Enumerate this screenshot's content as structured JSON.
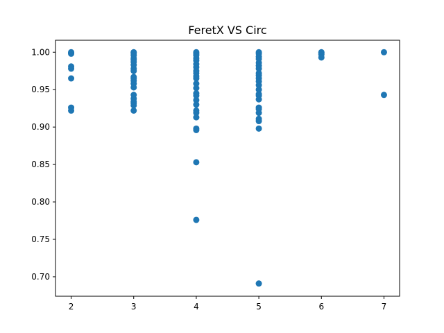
{
  "chart_data": {
    "type": "scatter",
    "title": "FeretX VS Circ",
    "xlabel": "",
    "ylabel": "",
    "xlim": [
      1.75,
      7.25
    ],
    "ylim": [
      0.674,
      1.016
    ],
    "grid": false,
    "x_ticks": [
      2,
      3,
      4,
      5,
      6,
      7
    ],
    "x_tick_labels": [
      "2",
      "3",
      "4",
      "5",
      "6",
      "7"
    ],
    "y_ticks": [
      0.7,
      0.75,
      0.8,
      0.85,
      0.9,
      0.95,
      1.0
    ],
    "y_tick_labels": [
      "0.70",
      "0.75",
      "0.80",
      "0.85",
      "0.90",
      "0.95",
      "1.00"
    ],
    "marker_color": "#1f77b4",
    "series": [
      {
        "points": [
          [
            2,
            1.0
          ],
          [
            2,
            0.999
          ],
          [
            2,
            0.998
          ],
          [
            2,
            0.981
          ],
          [
            2,
            0.978
          ],
          [
            2,
            0.965
          ],
          [
            2,
            0.926
          ],
          [
            2,
            0.922
          ],
          [
            3,
            1.0
          ],
          [
            3,
            0.999
          ],
          [
            3,
            0.996
          ],
          [
            3,
            0.992
          ],
          [
            3,
            0.99
          ],
          [
            3,
            0.987
          ],
          [
            3,
            0.983
          ],
          [
            3,
            0.978
          ],
          [
            3,
            0.975
          ],
          [
            3,
            0.967
          ],
          [
            3,
            0.965
          ],
          [
            3,
            0.962
          ],
          [
            3,
            0.958
          ],
          [
            3,
            0.953
          ],
          [
            3,
            0.943
          ],
          [
            3,
            0.938
          ],
          [
            3,
            0.934
          ],
          [
            3,
            0.932
          ],
          [
            3,
            0.929
          ],
          [
            3,
            0.922
          ],
          [
            4,
            1.0
          ],
          [
            4,
            0.998
          ],
          [
            4,
            0.996
          ],
          [
            4,
            0.992
          ],
          [
            4,
            0.989
          ],
          [
            4,
            0.984
          ],
          [
            4,
            0.98
          ],
          [
            4,
            0.975
          ],
          [
            4,
            0.972
          ],
          [
            4,
            0.968
          ],
          [
            4,
            0.965
          ],
          [
            4,
            0.958
          ],
          [
            4,
            0.952
          ],
          [
            4,
            0.945
          ],
          [
            4,
            0.942
          ],
          [
            4,
            0.936
          ],
          [
            4,
            0.93
          ],
          [
            4,
            0.922
          ],
          [
            4,
            0.919
          ],
          [
            4,
            0.913
          ],
          [
            4,
            0.898
          ],
          [
            4,
            0.896
          ],
          [
            4,
            0.853
          ],
          [
            4,
            0.776
          ],
          [
            5,
            1.0
          ],
          [
            5,
            0.998
          ],
          [
            5,
            0.994
          ],
          [
            5,
            0.991
          ],
          [
            5,
            0.986
          ],
          [
            5,
            0.982
          ],
          [
            5,
            0.978
          ],
          [
            5,
            0.972
          ],
          [
            5,
            0.969
          ],
          [
            5,
            0.965
          ],
          [
            5,
            0.961
          ],
          [
            5,
            0.956
          ],
          [
            5,
            0.95
          ],
          [
            5,
            0.944
          ],
          [
            5,
            0.942
          ],
          [
            5,
            0.937
          ],
          [
            5,
            0.926
          ],
          [
            5,
            0.924
          ],
          [
            5,
            0.919
          ],
          [
            5,
            0.911
          ],
          [
            5,
            0.908
          ],
          [
            5,
            0.898
          ],
          [
            5,
            0.691
          ],
          [
            6,
            1.0
          ],
          [
            6,
            0.999
          ],
          [
            6,
            0.997
          ],
          [
            6,
            0.993
          ],
          [
            7,
            1.0
          ],
          [
            7,
            0.943
          ]
        ]
      }
    ]
  }
}
